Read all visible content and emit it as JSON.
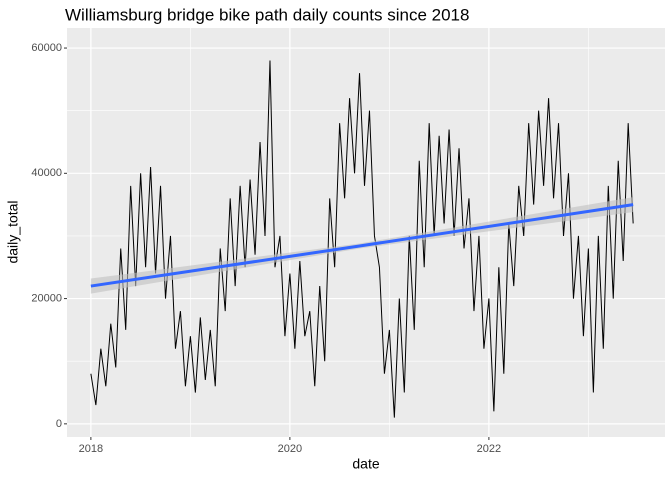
{
  "chart_data": {
    "type": "line",
    "title": "Williamsburg bridge bike path daily counts since 2018",
    "x_label": "date",
    "y_label": "daily_total",
    "x": [
      2018.0,
      2018.05,
      2018.1,
      2018.15,
      2018.2,
      2018.25,
      2018.3,
      2018.35,
      2018.4,
      2018.45,
      2018.5,
      2018.55,
      2018.6,
      2018.65,
      2018.7,
      2018.75,
      2018.8,
      2018.85,
      2018.9,
      2018.95,
      2019.0,
      2019.05,
      2019.1,
      2019.15,
      2019.2,
      2019.25,
      2019.3,
      2019.35,
      2019.4,
      2019.45,
      2019.5,
      2019.55,
      2019.6,
      2019.65,
      2019.7,
      2019.75,
      2019.8,
      2019.85,
      2019.9,
      2019.95,
      2020.0,
      2020.05,
      2020.1,
      2020.15,
      2020.2,
      2020.25,
      2020.3,
      2020.35,
      2020.4,
      2020.45,
      2020.5,
      2020.55,
      2020.6,
      2020.65,
      2020.7,
      2020.75,
      2020.8,
      2020.85,
      2020.9,
      2020.95,
      2021.0,
      2021.05,
      2021.1,
      2021.15,
      2021.2,
      2021.25,
      2021.3,
      2021.35,
      2021.4,
      2021.45,
      2021.5,
      2021.55,
      2021.6,
      2021.65,
      2021.7,
      2021.75,
      2021.8,
      2021.85,
      2021.9,
      2021.95,
      2022.0,
      2022.05,
      2022.1,
      2022.15,
      2022.2,
      2022.25,
      2022.3,
      2022.35,
      2022.4,
      2022.45,
      2022.5,
      2022.55,
      2022.6,
      2022.65,
      2022.7,
      2022.75,
      2022.8,
      2022.85,
      2022.9,
      2022.95,
      2023.0,
      2023.05,
      2023.1,
      2023.15,
      2023.2,
      2023.25,
      2023.3,
      2023.35,
      2023.4,
      2023.45
    ],
    "series": [
      {
        "color": "#000000",
        "values": [
          8000,
          3000,
          12000,
          6000,
          16000,
          9000,
          28000,
          15000,
          38000,
          22000,
          40000,
          25000,
          41000,
          24000,
          38000,
          20000,
          30000,
          12000,
          18000,
          6000,
          14000,
          5000,
          17000,
          7000,
          15000,
          6000,
          28000,
          18000,
          36000,
          22000,
          38000,
          25000,
          39000,
          27000,
          45000,
          30000,
          58000,
          25000,
          30000,
          14000,
          24000,
          12000,
          26000,
          14000,
          18000,
          6000,
          22000,
          10000,
          36000,
          25000,
          48000,
          36000,
          52000,
          40000,
          56000,
          38000,
          50000,
          30000,
          25000,
          8000,
          15000,
          1000,
          20000,
          5000,
          30000,
          15000,
          42000,
          25000,
          48000,
          30000,
          46000,
          32000,
          47000,
          30000,
          44000,
          28000,
          36000,
          18000,
          30000,
          12000,
          20000,
          2000,
          25000,
          8000,
          32000,
          22000,
          38000,
          30000,
          48000,
          35000,
          50000,
          38000,
          52000,
          36000,
          48000,
          30000,
          40000,
          20000,
          30000,
          14000,
          28000,
          5000,
          30000,
          12000,
          38000,
          20000,
          42000,
          26000,
          48000,
          32000
        ]
      }
    ],
    "trend": {
      "color": "#3366ff",
      "band_color": "#bfbfbf",
      "x": [
        2018.0,
        2020.7,
        2023.45
      ],
      "values": [
        22000,
        28400,
        35000
      ],
      "lower": [
        20800,
        28000,
        33800
      ],
      "upper": [
        23200,
        28800,
        36200
      ]
    },
    "xlim": [
      2017.76,
      2023.77
    ],
    "xticks": [
      2018,
      2020,
      2022
    ],
    "minor_xticks": [
      2019,
      2021,
      2023
    ],
    "ylim": [
      -2100,
      63200
    ],
    "yticks": [
      0,
      20000,
      40000,
      60000
    ],
    "minor_yticks": [
      10000,
      30000,
      50000
    ],
    "grid": true
  }
}
